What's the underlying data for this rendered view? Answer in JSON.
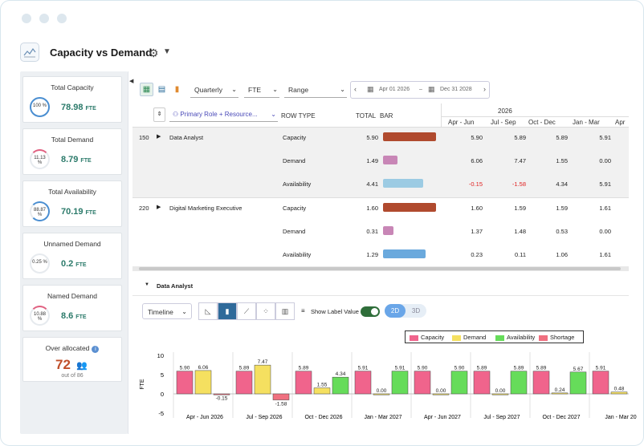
{
  "header": {
    "title": "Capacity vs Demand"
  },
  "sidebar": {
    "cards": [
      {
        "title": "Total Capacity",
        "pct": "100 %",
        "value": "78.98",
        "unit": "FTE",
        "fill": 1.0,
        "color": "#4a8ed1"
      },
      {
        "title": "Total Demand",
        "pct": "11.13 %",
        "value": "8.79",
        "unit": "FTE",
        "fill": 0.1113,
        "color": "#e06080"
      },
      {
        "title": "Total Availability",
        "pct": "88.87 %",
        "value": "70.19",
        "unit": "FTE",
        "fill": 0.8887,
        "color": "#4a8ed1"
      },
      {
        "title": "Unnamed Demand",
        "pct": "0.25 %",
        "value": "0.2",
        "unit": "FTE",
        "fill": 0.0025,
        "color": "#e06080"
      },
      {
        "title": "Named Demand",
        "pct": "10.88 %",
        "value": "8.6",
        "unit": "FTE",
        "fill": 0.1088,
        "color": "#e06080"
      }
    ],
    "overallocated": {
      "title": "Over allocated",
      "value": "72",
      "sub": "out of 86"
    }
  },
  "toolbar": {
    "period": "Quarterly",
    "unit": "FTE",
    "range": "Range",
    "date_from": "Apr 01 2026",
    "date_sep": "–",
    "date_to": "Dec 31 2028"
  },
  "grid": {
    "group_by": "Primary Role + Resource...",
    "col_rowtype": "ROW TYPE",
    "col_total": "TOTAL",
    "col_bar": "BAR",
    "year": "2026",
    "quarters": [
      "Apr - Jun",
      "Jul - Sep",
      "Oct - Dec",
      "Jan - Mar",
      "Apr"
    ],
    "groups": [
      {
        "id": "150",
        "name": "Data Analyst",
        "rows": [
          {
            "type": "Capacity",
            "total": "5.90",
            "bar_ratio": 1.0,
            "bar_color": "#b04a2e",
            "q": [
              "5.90",
              "5.89",
              "5.89",
              "5.91"
            ]
          },
          {
            "type": "Demand",
            "total": "1.49",
            "bar_ratio": 0.27,
            "bar_color": "#c886b6",
            "q": [
              "6.06",
              "7.47",
              "1.55",
              "0.00"
            ]
          },
          {
            "type": "Availability",
            "total": "4.41",
            "bar_ratio": 0.75,
            "bar_color": "#9ccbe3",
            "q": [
              "-0.15",
              "-1.58",
              "4.34",
              "5.91"
            ]
          }
        ]
      },
      {
        "id": "220",
        "name": "Digital Marketing Executive",
        "rows": [
          {
            "type": "Capacity",
            "total": "1.60",
            "bar_ratio": 1.0,
            "bar_color": "#b04a2e",
            "q": [
              "1.60",
              "1.59",
              "1.59",
              "1.61"
            ]
          },
          {
            "type": "Demand",
            "total": "0.31",
            "bar_ratio": 0.2,
            "bar_color": "#c886b6",
            "q": [
              "1.37",
              "1.48",
              "0.53",
              "0.00"
            ]
          },
          {
            "type": "Availability",
            "total": "1.29",
            "bar_ratio": 0.81,
            "bar_color": "#6aa9dd",
            "q": [
              "0.23",
              "0.11",
              "1.06",
              "1.61"
            ]
          }
        ]
      }
    ]
  },
  "detail": {
    "title": "Data Analyst",
    "view": "Timeline",
    "show_label": "Show Label Value",
    "dim_2d": "2D",
    "dim_3d": "3D"
  },
  "chart_data": {
    "type": "bar",
    "ylabel": "FTE",
    "ylim": [
      -5,
      10
    ],
    "yticks": [
      "10",
      "5",
      "0",
      "-5"
    ],
    "categories": [
      "Apr - Jun 2026",
      "Jul - Sep 2026",
      "Oct - Dec 2026",
      "Jan - Mar 2027",
      "Apr - Jun 2027",
      "Jul - Sep 2027",
      "Oct - Dec 2027",
      "Jan - Mar 20"
    ],
    "series": [
      {
        "name": "Capacity",
        "color": "#f0648c",
        "values": [
          5.9,
          5.89,
          5.89,
          5.91,
          5.9,
          5.89,
          5.89,
          5.91
        ]
      },
      {
        "name": "Demand",
        "color": "#f5e060",
        "values": [
          6.06,
          7.47,
          1.55,
          0.0,
          0.0,
          0.0,
          0.24,
          0.48
        ]
      },
      {
        "name": "Availability",
        "color": "#66dc5a",
        "values": [
          null,
          null,
          4.34,
          5.91,
          5.9,
          5.89,
          5.67,
          null
        ]
      },
      {
        "name": "Shortage",
        "color": "#f07080",
        "values": [
          -0.15,
          -1.58,
          null,
          null,
          null,
          null,
          null,
          null
        ]
      }
    ],
    "labels": [
      [
        "5.90",
        "6.06",
        "-0.15"
      ],
      [
        "5.89",
        "7.47",
        "-1.58"
      ],
      [
        "5.89",
        "1.55",
        "4.34"
      ],
      [
        "5.91",
        "0.00",
        "5.91"
      ],
      [
        "5.90",
        "0.00",
        "5.90"
      ],
      [
        "5.89",
        "0.00",
        "5.89"
      ],
      [
        "5.89",
        "0.24",
        "5.67"
      ],
      [
        "5.91",
        "0.48"
      ]
    ]
  }
}
